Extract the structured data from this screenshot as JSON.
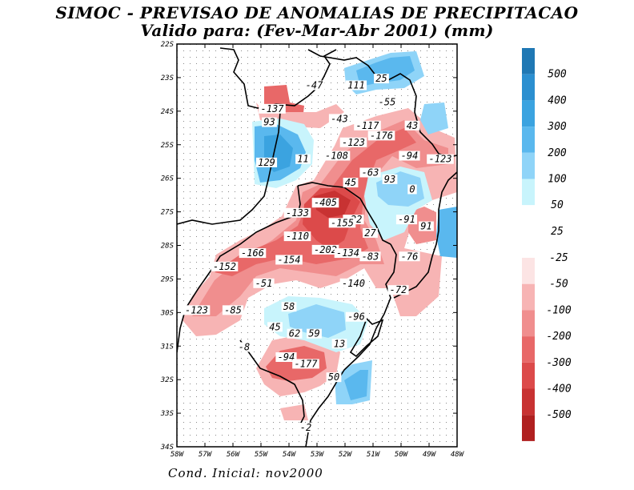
{
  "title_line1": "SIMOC - PREVISAO DE ANOMALIAS DE PRECIPITACAO",
  "title_line2": "Valido para: (Fev-Mar-Abr 2001) (mm)",
  "footer": "Cond. Inicial: nov2000",
  "lat_labels": [
    "22S",
    "23S",
    "24S",
    "25S",
    "26S",
    "27S",
    "28S",
    "29S",
    "30S",
    "31S",
    "32S",
    "33S",
    "34S"
  ],
  "lon_labels": [
    "58W",
    "57W",
    "56W",
    "55W",
    "54W",
    "53W",
    "52W",
    "51W",
    "50W",
    "49W",
    "48W"
  ],
  "colorbar": {
    "positive": [
      {
        "label": "500",
        "color": "#1f78b4"
      },
      {
        "label": "400",
        "color": "#2b8fd0"
      },
      {
        "label": "300",
        "color": "#3ba3e0"
      },
      {
        "label": "200",
        "color": "#5ab8ee"
      },
      {
        "label": "100",
        "color": "#8fd4f8"
      },
      {
        "label": "50",
        "color": "#c8f4fc"
      },
      {
        "label": "25",
        "color": "#ffffff"
      }
    ],
    "negative": [
      {
        "label": "-25",
        "color": "#fce4e4"
      },
      {
        "label": "-50",
        "color": "#f7b4b4"
      },
      {
        "label": "-100",
        "color": "#f08e8e"
      },
      {
        "label": "-200",
        "color": "#e86868"
      },
      {
        "label": "-300",
        "color": "#dc4a4a"
      },
      {
        "label": "-400",
        "color": "#c83232"
      },
      {
        "label": "-500",
        "color": "#b02020"
      }
    ]
  },
  "value_labels": [
    {
      "text": "-47",
      "lon": -53.1,
      "lat": -23.3
    },
    {
      "text": "111",
      "lon": -51.6,
      "lat": -23.3
    },
    {
      "text": "25",
      "lon": -50.7,
      "lat": -23.1
    },
    {
      "text": "-55",
      "lon": -50.5,
      "lat": -23.8
    },
    {
      "text": "-137",
      "lon": -54.6,
      "lat": -24.0
    },
    {
      "text": "-43",
      "lon": -52.2,
      "lat": -24.3
    },
    {
      "text": "-117",
      "lon": -51.2,
      "lat": -24.5
    },
    {
      "text": "43",
      "lon": -49.6,
      "lat": -24.5
    },
    {
      "text": "93",
      "lon": -54.7,
      "lat": -24.4
    },
    {
      "text": "-176",
      "lon": -50.7,
      "lat": -24.8
    },
    {
      "text": "-123",
      "lon": -51.7,
      "lat": -25.0
    },
    {
      "text": "-108",
      "lon": -52.3,
      "lat": -25.4
    },
    {
      "text": "-94",
      "lon": -49.7,
      "lat": -25.4
    },
    {
      "text": "-123",
      "lon": -48.6,
      "lat": -25.5
    },
    {
      "text": "129",
      "lon": -54.8,
      "lat": -25.6
    },
    {
      "text": "11",
      "lon": -53.5,
      "lat": -25.5
    },
    {
      "text": "-63",
      "lon": -51.1,
      "lat": -25.9
    },
    {
      "text": "93",
      "lon": -50.4,
      "lat": -26.1
    },
    {
      "text": "45",
      "lon": -51.8,
      "lat": -26.2
    },
    {
      "text": "0",
      "lon": -49.6,
      "lat": -26.4
    },
    {
      "text": "-405",
      "lon": -52.7,
      "lat": -26.8
    },
    {
      "text": "-133",
      "lon": -53.7,
      "lat": -27.1
    },
    {
      "text": "-22",
      "lon": -51.7,
      "lat": -27.3
    },
    {
      "text": "-91",
      "lon": -49.8,
      "lat": -27.3
    },
    {
      "text": "-155",
      "lon": -52.1,
      "lat": -27.4
    },
    {
      "text": "91",
      "lon": -49.1,
      "lat": -27.5
    },
    {
      "text": "27",
      "lon": -51.1,
      "lat": -27.7
    },
    {
      "text": "-110",
      "lon": -53.7,
      "lat": -27.8
    },
    {
      "text": "-202",
      "lon": -52.7,
      "lat": -28.2
    },
    {
      "text": "-134",
      "lon": -51.9,
      "lat": -28.3
    },
    {
      "text": "-166",
      "lon": -55.3,
      "lat": -28.3
    },
    {
      "text": "-83",
      "lon": -51.1,
      "lat": -28.4
    },
    {
      "text": "-76",
      "lon": -49.7,
      "lat": -28.4
    },
    {
      "text": "-154",
      "lon": -54.0,
      "lat": -28.5
    },
    {
      "text": "-152",
      "lon": -56.3,
      "lat": -28.7
    },
    {
      "text": "-51",
      "lon": -54.9,
      "lat": -29.2
    },
    {
      "text": "-140",
      "lon": -51.7,
      "lat": -29.2
    },
    {
      "text": "-72",
      "lon": -50.1,
      "lat": -29.4
    },
    {
      "text": "58",
      "lon": -54.0,
      "lat": -29.9
    },
    {
      "text": "-123",
      "lon": -57.3,
      "lat": -30.0
    },
    {
      "text": "-85",
      "lon": -56.0,
      "lat": -30.0
    },
    {
      "text": "-96",
      "lon": -51.6,
      "lat": -30.2
    },
    {
      "text": "45",
      "lon": -54.5,
      "lat": -30.5
    },
    {
      "text": "62",
      "lon": -53.8,
      "lat": -30.7
    },
    {
      "text": "59",
      "lon": -53.1,
      "lat": -30.7
    },
    {
      "text": "13",
      "lon": -52.2,
      "lat": -31.0
    },
    {
      "text": "-8",
      "lon": -55.6,
      "lat": -31.1
    },
    {
      "text": "-94",
      "lon": -54.1,
      "lat": -31.4
    },
    {
      "text": "-177",
      "lon": -53.4,
      "lat": -31.6
    },
    {
      "text": "50",
      "lon": -52.4,
      "lat": -32.0
    },
    {
      "text": "-2",
      "lon": -53.4,
      "lat": -33.5
    }
  ]
}
